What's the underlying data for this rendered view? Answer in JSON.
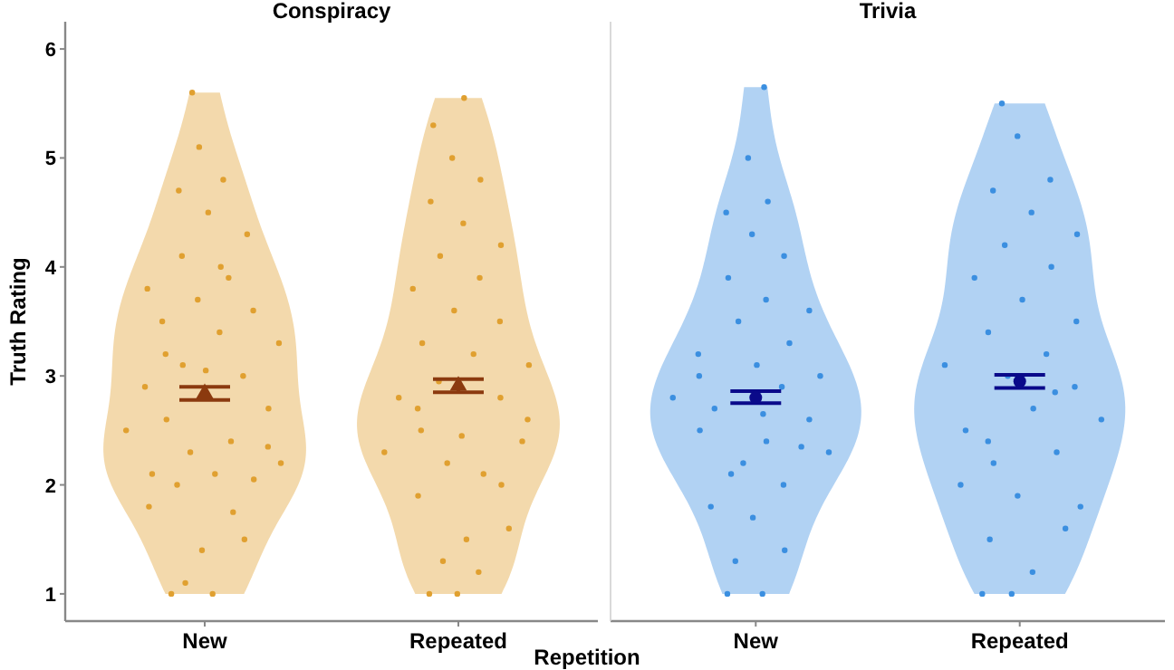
{
  "chart_data": [
    {
      "type": "scatter",
      "title": "Conspiracy",
      "xlabel": "Repetition",
      "ylabel": "Truth Rating",
      "categories": [
        "New",
        "Repeated"
      ],
      "ylim": [
        0.75,
        6.25
      ],
      "yticks": [
        1,
        2,
        3,
        4,
        5,
        6
      ],
      "grid": false,
      "series": [
        {
          "type": "scatter",
          "marker": "circle",
          "color": "#e0a030",
          "x": [
            "New",
            "New",
            "New",
            "New",
            "New",
            "New",
            "New",
            "New",
            "New",
            "New",
            "New",
            "New",
            "New",
            "New",
            "New",
            "New",
            "New",
            "New",
            "New",
            "New",
            "New",
            "New",
            "New",
            "New",
            "New",
            "New",
            "New",
            "New",
            "New",
            "New",
            "New",
            "New",
            "New",
            "New",
            "New",
            "New",
            "New",
            "New",
            "Repeated",
            "Repeated",
            "Repeated",
            "Repeated",
            "Repeated",
            "Repeated",
            "Repeated",
            "Repeated",
            "Repeated",
            "Repeated",
            "Repeated",
            "Repeated",
            "Repeated",
            "Repeated",
            "Repeated",
            "Repeated",
            "Repeated",
            "Repeated",
            "Repeated",
            "Repeated",
            "Repeated",
            "Repeated",
            "Repeated",
            "Repeated",
            "Repeated",
            "Repeated",
            "Repeated",
            "Repeated",
            "Repeated",
            "Repeated",
            "Repeated",
            "Repeated",
            "Repeated",
            "Repeated"
          ],
          "values": [
            1.0,
            1.0,
            1.1,
            1.5,
            1.4,
            1.8,
            1.75,
            2.0,
            2.2,
            2.1,
            2.1,
            2.05,
            2.3,
            2.5,
            2.4,
            2.6,
            2.7,
            3.05,
            2.9,
            3.0,
            3.1,
            3.3,
            3.4,
            3.5,
            3.6,
            3.7,
            3.8,
            3.9,
            4.1,
            4.3,
            4.5,
            4.7,
            4.8,
            5.1,
            5.6,
            4.0,
            3.2,
            2.35,
            1.0,
            1.0,
            1.2,
            1.3,
            1.6,
            1.5,
            1.9,
            2.0,
            2.2,
            2.3,
            2.1,
            2.5,
            2.6,
            2.45,
            2.8,
            2.8,
            2.95,
            3.1,
            3.2,
            3.3,
            3.5,
            3.6,
            3.8,
            3.9,
            4.1,
            4.2,
            4.4,
            4.6,
            4.8,
            5.0,
            5.3,
            5.55,
            2.7,
            2.4
          ]
        },
        {
          "type": "scatter",
          "marker": "triangle",
          "color": "#8b3a0f",
          "x": [
            "New",
            "Repeated"
          ],
          "values": [
            2.84,
            2.91
          ],
          "errors": [
            [
              2.78,
              2.9
            ],
            [
              2.85,
              2.97
            ]
          ]
        }
      ]
    },
    {
      "type": "scatter",
      "title": "Trivia",
      "categories": [
        "New",
        "Repeated"
      ],
      "ylim": [
        0.75,
        6.25
      ],
      "tick_labels": "x",
      "grid": false,
      "series": [
        {
          "type": "scatter",
          "marker": "circle",
          "color": "#3b8fe0",
          "x": [
            "New",
            "New",
            "New",
            "New",
            "New",
            "New",
            "New",
            "New",
            "New",
            "New",
            "New",
            "New",
            "New",
            "New",
            "New",
            "New",
            "New",
            "New",
            "New",
            "New",
            "New",
            "New",
            "New",
            "New",
            "New",
            "New",
            "New",
            "New",
            "New",
            "New",
            "New",
            "New",
            "New",
            "Repeated",
            "Repeated",
            "Repeated",
            "Repeated",
            "Repeated",
            "Repeated",
            "Repeated",
            "Repeated",
            "Repeated",
            "Repeated",
            "Repeated",
            "Repeated",
            "Repeated",
            "Repeated",
            "Repeated",
            "Repeated",
            "Repeated",
            "Repeated",
            "Repeated",
            "Repeated",
            "Repeated",
            "Repeated",
            "Repeated",
            "Repeated",
            "Repeated",
            "Repeated",
            "Repeated",
            "Repeated",
            "Repeated",
            "Repeated",
            "Repeated"
          ],
          "values": [
            1.0,
            1.0,
            1.3,
            1.4,
            1.7,
            1.8,
            2.0,
            2.1,
            2.3,
            2.4,
            2.5,
            2.6,
            2.2,
            2.8,
            2.9,
            2.7,
            3.0,
            3.1,
            3.2,
            3.3,
            3.5,
            3.6,
            3.7,
            3.9,
            4.1,
            4.3,
            4.5,
            4.6,
            5.0,
            5.65,
            2.65,
            3.0,
            2.35,
            1.0,
            1.0,
            1.2,
            1.5,
            1.6,
            1.9,
            2.0,
            2.3,
            2.2,
            2.6,
            2.7,
            2.5,
            2.9,
            3.0,
            3.1,
            3.2,
            3.4,
            3.5,
            3.7,
            3.9,
            4.0,
            4.2,
            4.3,
            4.5,
            4.7,
            4.8,
            5.2,
            5.5,
            2.85,
            2.4,
            1.8
          ]
        },
        {
          "type": "scatter",
          "marker": "circle",
          "color": "#0a0a8a",
          "x": [
            "New",
            "Repeated"
          ],
          "values": [
            2.8,
            2.95
          ],
          "errors": [
            [
              2.75,
              2.86
            ],
            [
              2.89,
              3.01
            ]
          ]
        }
      ]
    }
  ]
}
